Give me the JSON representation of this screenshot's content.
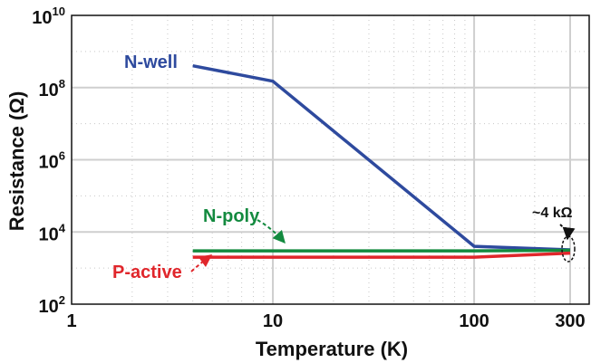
{
  "chart_data": {
    "type": "line",
    "xlabel": "Temperature (K)",
    "ylabel": "Resistance (Ω)",
    "xscale": "log",
    "yscale": "log",
    "xlim": [
      1,
      300
    ],
    "ylim": [
      100,
      10000000000
    ],
    "grid": true,
    "x_ticks": [
      "1",
      "10",
      "100",
      "300"
    ],
    "y_ticks": [
      {
        "base": "10",
        "exp": "2",
        "value": 100
      },
      {
        "base": "10",
        "exp": "4",
        "value": 10000
      },
      {
        "base": "10",
        "exp": "6",
        "value": 1000000
      },
      {
        "base": "10",
        "exp": "8",
        "value": 100000000
      },
      {
        "base": "10",
        "exp": "10",
        "value": 10000000000
      }
    ],
    "series": [
      {
        "name": "N-well",
        "color": "#2e4a9e",
        "x": [
          4,
          10,
          100,
          300
        ],
        "y": [
          400000000,
          150000000,
          4000,
          3200
        ]
      },
      {
        "name": "N-poly",
        "color": "#138a3f",
        "x": [
          4,
          100,
          300
        ],
        "y": [
          3000,
          3000,
          3100
        ]
      },
      {
        "name": "P-active",
        "color": "#e0262b",
        "x": [
          4,
          100,
          300
        ],
        "y": [
          2000,
          2000,
          2600
        ]
      }
    ],
    "annotations": [
      {
        "text": "~4 kΩ"
      }
    ]
  }
}
